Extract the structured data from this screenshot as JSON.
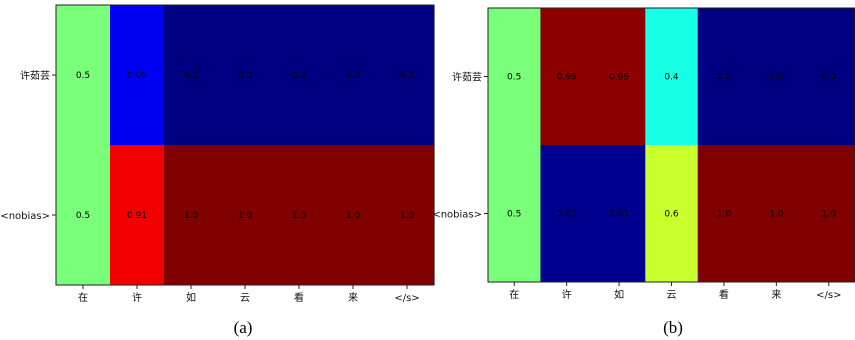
{
  "chart_data": [
    {
      "type": "heatmap",
      "caption": "(a)",
      "rows": [
        "许茹芸",
        "<nobias>"
      ],
      "columns": [
        "在",
        "许",
        "如",
        "云",
        "看",
        "来",
        "</s>"
      ],
      "values": [
        [
          0.5,
          0.09,
          0.0,
          0.0,
          0.0,
          0.0,
          0.0
        ],
        [
          0.5,
          0.91,
          1.0,
          1.0,
          1.0,
          1.0,
          1.0
        ]
      ],
      "labels": [
        [
          "0.5",
          "0.09",
          "0.0",
          "0.0",
          "0.0",
          "0.0",
          "0.0"
        ],
        [
          "0.5",
          "0.91",
          "1.0",
          "1.0",
          "1.0",
          "1.0",
          "1.0"
        ]
      ],
      "colormap": "jet",
      "range": [
        0,
        1
      ]
    },
    {
      "type": "heatmap",
      "caption": "(b)",
      "rows": [
        "许茹芸",
        "<nobias>"
      ],
      "columns": [
        "在",
        "许",
        "如",
        "云",
        "看",
        "来",
        "</s>"
      ],
      "values": [
        [
          0.5,
          0.99,
          0.99,
          0.4,
          0.0,
          0.0,
          0.0
        ],
        [
          0.5,
          0.01,
          0.01,
          0.6,
          1.0,
          1.0,
          1.0
        ]
      ],
      "labels": [
        [
          "0.5",
          "0.99",
          "0.99",
          "0.4",
          "0.0",
          "0.0",
          "0.0"
        ],
        [
          "0.5",
          "0.01",
          "0.01",
          "0.6",
          "1.0",
          "1.0",
          "1.0"
        ]
      ],
      "colormap": "jet",
      "range": [
        0,
        1
      ]
    }
  ]
}
